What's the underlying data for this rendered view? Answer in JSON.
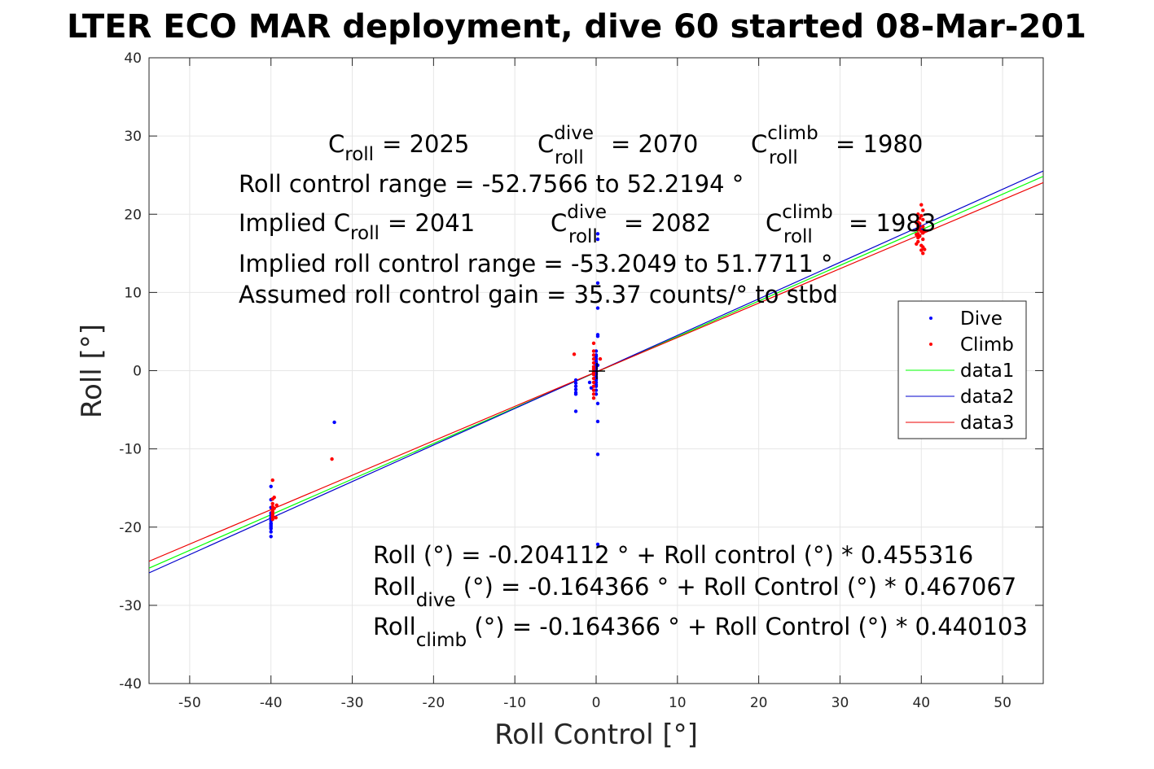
{
  "chart_data": {
    "type": "scatter",
    "title": "LTER ECO MAR deployment, dive 60 started 08-Mar-201",
    "xlabel": "Roll Control [°]",
    "ylabel": "Roll [°]",
    "xlim": [
      -55,
      55
    ],
    "ylim": [
      -40,
      40
    ],
    "x_ticks": [
      -50,
      -40,
      -30,
      -20,
      -10,
      0,
      10,
      20,
      30,
      40,
      50
    ],
    "y_ticks": [
      40,
      30,
      20,
      10,
      0,
      -10,
      -20,
      -30,
      -40
    ],
    "grid": true,
    "legend_placement": "right",
    "series": [
      {
        "name": "Dive",
        "kind": "points",
        "color": "#0000ff",
        "x": [
          -40,
          -40,
          -40,
          -40,
          -40,
          -40,
          -40,
          -40,
          -40,
          -40,
          -40,
          -40,
          -40,
          -40,
          -40,
          -32.2,
          -2.5,
          -2.5,
          -2.5,
          -2.5,
          -2.5,
          -2.5,
          -2.5,
          -0.8,
          -0.6,
          0,
          0,
          0,
          0,
          0,
          0,
          0,
          0,
          0,
          0,
          0,
          0,
          0,
          0,
          0,
          0,
          0,
          0,
          0,
          0,
          0.2,
          0.2,
          0.2,
          0.2,
          0.2,
          0.2,
          0.2,
          0.2,
          0.2,
          0.2,
          0.2,
          39.8,
          40
        ],
        "y": [
          -14.8,
          -16.5,
          -17.5,
          -18.2,
          -18.8,
          -19.2,
          -19.5,
          -19.8,
          -20,
          -20.2,
          -19.6,
          -18.9,
          -18.5,
          -21.2,
          -20.6,
          -6.6,
          -1.2,
          -1.6,
          -2.0,
          -2.4,
          -2.8,
          -3.0,
          -5.2,
          -1.5,
          -2.2,
          0,
          0.5,
          1,
          1.5,
          2,
          2.5,
          -0.5,
          -1,
          -1.5,
          -2,
          -2.5,
          -3,
          0.8,
          -0.8,
          1.2,
          -1.2,
          0.3,
          -0.3,
          1.8,
          -1.8,
          17.5,
          16.8,
          11.2,
          8,
          4.6,
          4.4,
          -4.2,
          -6.5,
          -10.7,
          -22.2,
          0.7,
          18.5,
          18
        ]
      },
      {
        "name": "Climb",
        "kind": "points",
        "color": "#ff0000",
        "x": [
          -39.8,
          -39.8,
          -39.8,
          -39.8,
          -39.8,
          -39.8,
          -39.8,
          -39.8,
          -39.8,
          -39.8,
          -39.8,
          -39.6,
          -39.4,
          -39.3,
          -39.6,
          -32.5,
          -2.7,
          -0.3,
          -0.3,
          -0.3,
          -0.3,
          -0.3,
          -0.3,
          -0.3,
          -0.3,
          -0.3,
          -0.3,
          -0.3,
          -0.3,
          -0.3,
          -0.3,
          -0.3,
          0.5,
          39.6,
          39.6,
          39.6,
          39.6,
          39.6,
          39.6,
          39.6,
          39.8,
          39.8,
          39.8,
          39.8,
          40.0,
          40.0,
          40.0,
          40.0,
          40.0,
          40.2,
          40.2,
          40.2,
          40.2,
          40.2,
          40.2,
          40.2,
          39.4,
          39.4,
          39.4,
          40.4,
          40.4
        ],
        "y": [
          -14,
          -16.4,
          -17.0,
          -17.4,
          -17.8,
          -18.0,
          -18.2,
          -18.4,
          -18.7,
          -19.0,
          -18.6,
          -17.6,
          -18.8,
          -17.2,
          -16.2,
          -11.3,
          2.1,
          3.5,
          2.5,
          1.5,
          0.5,
          -0.5,
          -1.5,
          -2.5,
          -3.5,
          1.0,
          -1.0,
          0.2,
          -0.2,
          2.0,
          -2.0,
          -3.0,
          1.5,
          20.0,
          19.0,
          18.5,
          18.0,
          17.5,
          17.0,
          16.5,
          19.5,
          18.8,
          18.2,
          17.2,
          21.2,
          19.8,
          17.8,
          16.0,
          15.4,
          20.5,
          19.3,
          18.4,
          17.6,
          16.8,
          15.8,
          15.0,
          18.9,
          16.2,
          17.4,
          17.9,
          15.5
        ]
      },
      {
        "name": "data1",
        "kind": "line",
        "color": "#00ff00",
        "slope": 0.455316,
        "intercept": -0.204112
      },
      {
        "name": "data2",
        "kind": "line",
        "color": "#0000cc",
        "slope": 0.467067,
        "intercept": -0.164366
      },
      {
        "name": "data3",
        "kind": "line",
        "color": "#ee0000",
        "slope": 0.440103,
        "intercept": -0.164366
      }
    ],
    "origin_marker": {
      "symbol": "+",
      "x": 0,
      "y": 0
    },
    "annotations": {
      "c_roll": {
        "base": "C",
        "sub": "roll",
        "value": "= 2025"
      },
      "c_roll_dive": {
        "base": "C",
        "sup": "dive",
        "sub": "roll",
        "value": "= 2070"
      },
      "c_roll_climb": {
        "base": "C",
        "sup": "climb",
        "sub": "roll",
        "value": "= 1980"
      },
      "range_line": "Roll control range = -52.7566 to 52.2194 °",
      "implied_c_roll": {
        "prefix": "Implied C",
        "sub": "roll",
        "value": "= 2041"
      },
      "implied_c_roll_dive": {
        "base": "C",
        "sup": "dive",
        "sub": "roll",
        "value": "= 2082"
      },
      "implied_c_roll_climb": {
        "base": "C",
        "sup": "climb",
        "sub": "roll",
        "value": "= 1983"
      },
      "implied_range_line": "Implied roll control range = -53.2049 to 51.7711 °",
      "gain_line": "Assumed roll control gain = 35.37 counts/° to stbd",
      "eq_roll": "Roll (°) = -0.204112 ° + Roll control (°) * 0.455316",
      "eq_dive": {
        "base": "Roll",
        "sub": "dive",
        "rest": " (°) = -0.164366 ° + Roll Control (°) * 0.467067"
      },
      "eq_climb": {
        "base": "Roll",
        "sub": "climb",
        "rest": " (°) = -0.164366 ° + Roll Control (°) * 0.440103"
      }
    }
  }
}
